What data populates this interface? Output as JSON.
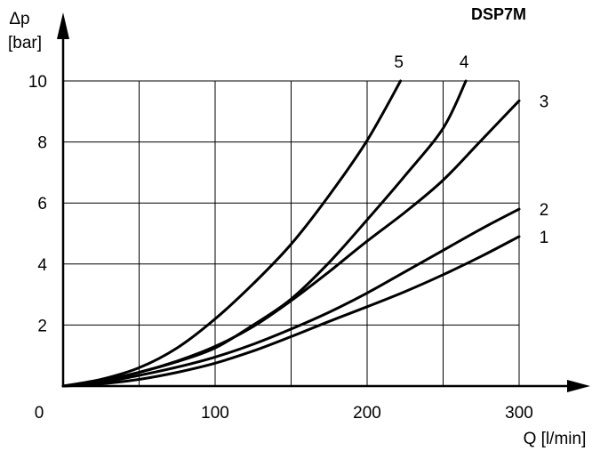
{
  "chart_data": {
    "type": "line",
    "title": "DSP7M",
    "ylabel_symbol": "Δp",
    "ylabel_unit": "[bar]",
    "xlabel": "Q [l/min]",
    "xlim": [
      0,
      300
    ],
    "ylim": [
      0,
      10
    ],
    "grid": true,
    "x_ticks": [
      0,
      100,
      200,
      300
    ],
    "x_grid": [
      50,
      100,
      150,
      200,
      250,
      300
    ],
    "y_ticks": [
      2,
      4,
      6,
      8,
      10
    ],
    "series": [
      {
        "name": "1",
        "x": [
          0,
          25,
          50,
          75,
          100,
          125,
          150,
          175,
          200,
          225,
          250,
          275,
          300
        ],
        "values": [
          0,
          0.07,
          0.22,
          0.45,
          0.75,
          1.15,
          1.62,
          2.12,
          2.6,
          3.1,
          3.65,
          4.25,
          4.9
        ]
      },
      {
        "name": "2",
        "x": [
          0,
          25,
          50,
          75,
          100,
          125,
          150,
          175,
          200,
          225,
          250,
          275,
          300
        ],
        "values": [
          0,
          0.12,
          0.35,
          0.62,
          0.95,
          1.37,
          1.87,
          2.42,
          3.05,
          3.75,
          4.45,
          5.15,
          5.8
        ]
      },
      {
        "name": "3",
        "x": [
          0,
          25,
          50,
          75,
          100,
          125,
          150,
          175,
          200,
          225,
          250,
          275,
          300
        ],
        "values": [
          0,
          0.18,
          0.45,
          0.82,
          1.3,
          1.95,
          2.8,
          3.75,
          4.75,
          5.7,
          6.75,
          8.05,
          9.35
        ]
      },
      {
        "name": "4",
        "x": [
          0,
          25,
          50,
          75,
          100,
          125,
          150,
          175,
          200,
          225,
          250,
          265
        ],
        "values": [
          0,
          0.17,
          0.45,
          0.8,
          1.25,
          2.0,
          2.85,
          4.05,
          5.45,
          6.9,
          8.45,
          10
        ]
      },
      {
        "name": "5",
        "x": [
          0,
          25,
          50,
          75,
          100,
          125,
          150,
          175,
          200,
          222
        ],
        "values": [
          0,
          0.22,
          0.6,
          1.25,
          2.2,
          3.35,
          4.65,
          6.25,
          8.05,
          10
        ]
      }
    ]
  }
}
